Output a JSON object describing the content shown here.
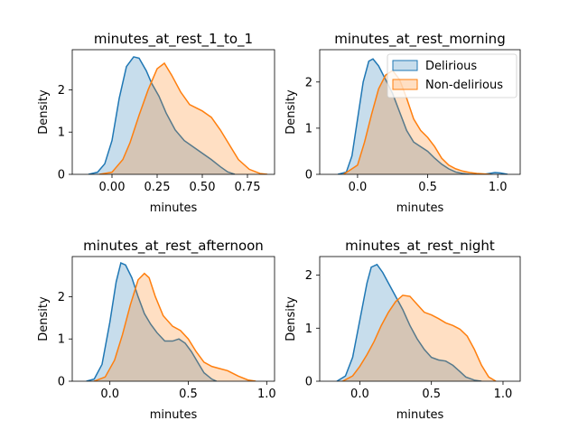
{
  "colors": {
    "delirious": "#1f77b4",
    "non_delirious": "#ff7f0e"
  },
  "legend": {
    "placement": "upper-right",
    "entries": [
      "Delirious",
      "Non-delirious"
    ]
  },
  "chart_data": [
    {
      "type": "area",
      "title": "minutes_at_rest_1_to_1",
      "xlabel": "minutes",
      "ylabel": "Density",
      "xlim": [
        -0.22,
        0.9
      ],
      "ylim": [
        0,
        2.95
      ],
      "xticks": [
        0.0,
        0.25,
        0.5,
        0.75
      ],
      "xtick_labels": [
        "0.00",
        "0.25",
        "0.50",
        "0.75"
      ],
      "yticks": [
        0,
        1,
        2
      ],
      "ytick_labels": [
        "0",
        "1",
        "2"
      ],
      "legend": false,
      "series": [
        {
          "name": "Delirious",
          "x": [
            -0.13,
            -0.08,
            -0.04,
            0.0,
            0.04,
            0.08,
            0.12,
            0.15,
            0.19,
            0.22,
            0.26,
            0.3,
            0.35,
            0.4,
            0.45,
            0.5,
            0.55,
            0.6,
            0.64,
            0.68
          ],
          "y": [
            0.0,
            0.05,
            0.25,
            0.8,
            1.8,
            2.55,
            2.78,
            2.75,
            2.45,
            2.15,
            1.85,
            1.45,
            1.05,
            0.8,
            0.65,
            0.5,
            0.35,
            0.18,
            0.06,
            0.0
          ]
        },
        {
          "name": "Non-delirious",
          "x": [
            -0.07,
            0.0,
            0.06,
            0.1,
            0.15,
            0.2,
            0.25,
            0.29,
            0.33,
            0.38,
            0.43,
            0.5,
            0.55,
            0.6,
            0.65,
            0.7,
            0.76,
            0.82,
            0.86
          ],
          "y": [
            0.0,
            0.05,
            0.35,
            0.75,
            1.4,
            2.0,
            2.5,
            2.63,
            2.35,
            1.95,
            1.65,
            1.5,
            1.35,
            1.05,
            0.7,
            0.35,
            0.12,
            0.02,
            0.0
          ]
        }
      ]
    },
    {
      "type": "area",
      "title": "minutes_at_rest_morning",
      "xlabel": "minutes",
      "ylabel": "Density",
      "xlim": [
        -0.27,
        1.16
      ],
      "ylim": [
        0,
        2.7
      ],
      "xticks": [
        0.0,
        0.5,
        1.0
      ],
      "xtick_labels": [
        "0.0",
        "0.5",
        "1.0"
      ],
      "yticks": [
        0,
        1,
        2
      ],
      "ytick_labels": [
        "0",
        "1",
        "2"
      ],
      "legend": true,
      "series": [
        {
          "name": "Delirious",
          "x": [
            -0.14,
            -0.08,
            -0.04,
            0.0,
            0.04,
            0.08,
            0.11,
            0.15,
            0.2,
            0.25,
            0.3,
            0.35,
            0.4,
            0.45,
            0.5,
            0.55,
            0.6,
            0.65,
            0.7,
            0.75,
            0.8,
            0.9,
            0.98,
            1.02,
            1.07
          ],
          "y": [
            0.0,
            0.05,
            0.4,
            1.2,
            2.0,
            2.45,
            2.5,
            2.35,
            2.05,
            1.75,
            1.35,
            0.95,
            0.7,
            0.6,
            0.5,
            0.35,
            0.22,
            0.12,
            0.05,
            0.02,
            0.0,
            0.0,
            0.04,
            0.03,
            0.0
          ]
        },
        {
          "name": "Non-delirious",
          "x": [
            -0.1,
            0.0,
            0.05,
            0.1,
            0.15,
            0.2,
            0.25,
            0.3,
            0.35,
            0.4,
            0.45,
            0.5,
            0.55,
            0.6,
            0.65,
            0.7,
            0.75,
            0.8,
            0.85,
            0.95
          ],
          "y": [
            0.0,
            0.2,
            0.7,
            1.3,
            1.85,
            2.15,
            2.25,
            2.05,
            1.65,
            1.2,
            0.95,
            0.8,
            0.6,
            0.35,
            0.2,
            0.12,
            0.07,
            0.04,
            0.02,
            0.0
          ]
        }
      ]
    },
    {
      "type": "area",
      "title": "minutes_at_rest_afternoon",
      "xlabel": "minutes",
      "ylabel": "Density",
      "xlim": [
        -0.24,
        1.05
      ],
      "ylim": [
        0,
        2.95
      ],
      "xticks": [
        0.0,
        0.5,
        1.0
      ],
      "xtick_labels": [
        "0.0",
        "0.5",
        "1.0"
      ],
      "yticks": [
        0,
        1,
        2
      ],
      "ytick_labels": [
        "0",
        "1",
        "2"
      ],
      "legend": false,
      "series": [
        {
          "name": "Delirious",
          "x": [
            -0.15,
            -0.1,
            -0.05,
            0.0,
            0.04,
            0.07,
            0.1,
            0.14,
            0.18,
            0.22,
            0.26,
            0.3,
            0.35,
            0.4,
            0.44,
            0.48,
            0.52,
            0.56,
            0.6,
            0.65,
            0.68
          ],
          "y": [
            0.0,
            0.05,
            0.4,
            1.4,
            2.35,
            2.8,
            2.75,
            2.45,
            2.0,
            1.6,
            1.35,
            1.15,
            0.95,
            0.95,
            1.0,
            0.9,
            0.7,
            0.45,
            0.2,
            0.05,
            0.0
          ]
        },
        {
          "name": "Non-delirious",
          "x": [
            -0.1,
            -0.03,
            0.03,
            0.08,
            0.13,
            0.18,
            0.22,
            0.25,
            0.29,
            0.34,
            0.4,
            0.45,
            0.5,
            0.55,
            0.6,
            0.65,
            0.7,
            0.75,
            0.82,
            0.88,
            0.93
          ],
          "y": [
            0.0,
            0.1,
            0.5,
            1.1,
            1.8,
            2.4,
            2.55,
            2.45,
            2.0,
            1.55,
            1.3,
            1.2,
            1.0,
            0.7,
            0.45,
            0.35,
            0.3,
            0.25,
            0.12,
            0.03,
            0.0
          ]
        }
      ]
    },
    {
      "type": "area",
      "title": "minutes_at_rest_night",
      "xlabel": "minutes",
      "ylabel": "Density",
      "xlim": [
        -0.28,
        1.12
      ],
      "ylim": [
        0,
        2.35
      ],
      "xticks": [
        0.0,
        0.5,
        1.0
      ],
      "xtick_labels": [
        "0.0",
        "0.5",
        "1.0"
      ],
      "yticks": [
        0,
        1,
        2
      ],
      "ytick_labels": [
        "0",
        "1",
        "2"
      ],
      "legend": false,
      "series": [
        {
          "name": "Delirious",
          "x": [
            -0.16,
            -0.1,
            -0.05,
            0.0,
            0.05,
            0.08,
            0.12,
            0.16,
            0.2,
            0.25,
            0.3,
            0.35,
            0.4,
            0.45,
            0.5,
            0.55,
            0.6,
            0.65,
            0.7,
            0.74,
            0.8,
            0.85
          ],
          "y": [
            0.0,
            0.1,
            0.45,
            1.15,
            1.85,
            2.15,
            2.2,
            2.05,
            1.85,
            1.6,
            1.35,
            1.05,
            0.8,
            0.6,
            0.45,
            0.4,
            0.38,
            0.3,
            0.18,
            0.08,
            0.02,
            0.0
          ]
        },
        {
          "name": "Non-delirious",
          "x": [
            -0.12,
            -0.05,
            0.0,
            0.05,
            0.1,
            0.15,
            0.2,
            0.25,
            0.3,
            0.35,
            0.4,
            0.45,
            0.5,
            0.55,
            0.6,
            0.65,
            0.7,
            0.75,
            0.8,
            0.85,
            0.9,
            0.95
          ],
          "y": [
            0.0,
            0.1,
            0.28,
            0.5,
            0.75,
            1.05,
            1.3,
            1.5,
            1.62,
            1.6,
            1.45,
            1.3,
            1.25,
            1.18,
            1.1,
            1.05,
            0.98,
            0.85,
            0.6,
            0.3,
            0.08,
            0.0
          ]
        }
      ]
    }
  ]
}
